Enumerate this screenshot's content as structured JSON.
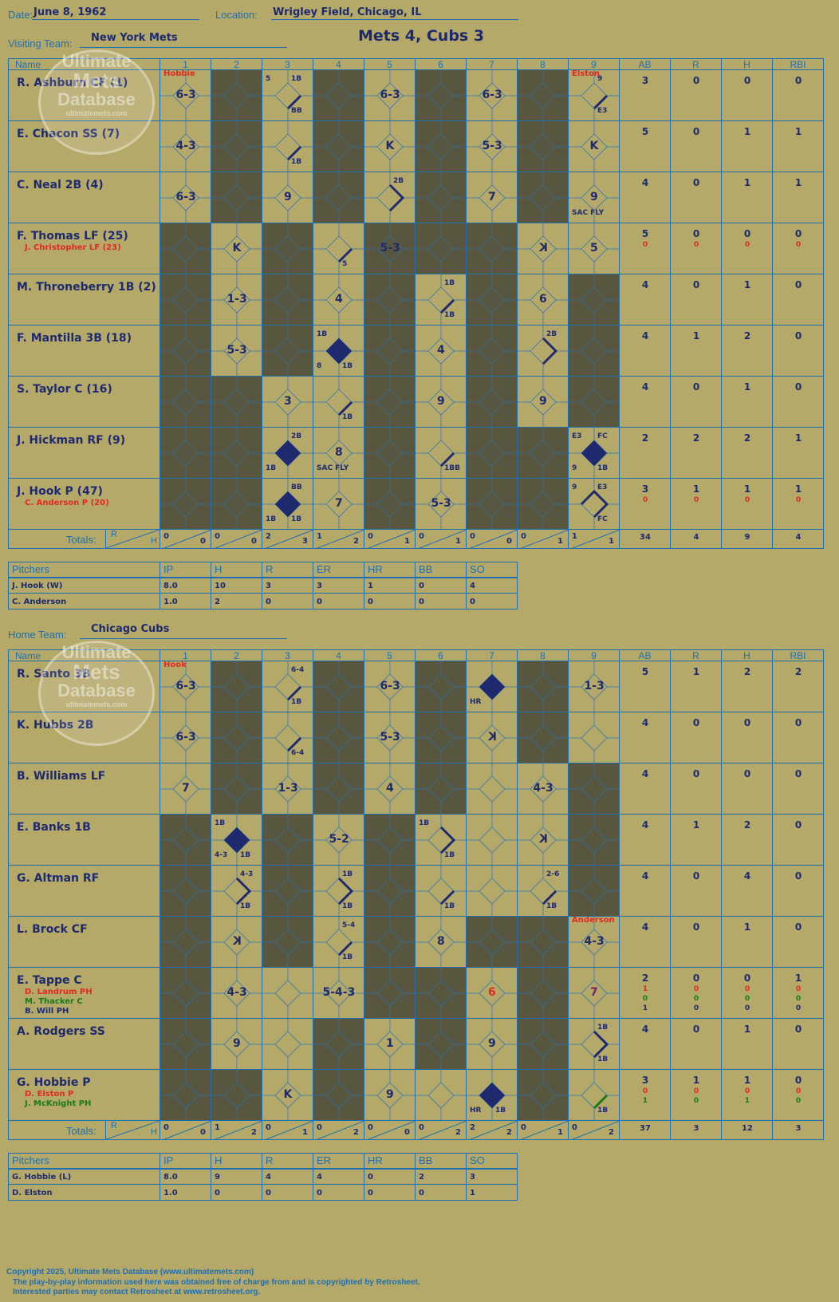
{
  "header": {
    "date_label": "Date:",
    "date": "June 8, 1962",
    "location_label": "Location:",
    "location": "Wrigley Field, Chicago, IL",
    "visiting_label": "Visiting Team:",
    "visiting_team": "New York Mets",
    "home_label": "Home Team:",
    "home_team": "Chicago Cubs",
    "score_title": "Mets 4, Cubs 3"
  },
  "watermark": {
    "line1": "Ultimate",
    "line2": "Mets",
    "line3": "Database",
    "url": "ultimatemets.com"
  },
  "columns": {
    "name": "Name",
    "innings": [
      "1",
      "2",
      "3",
      "4",
      "5",
      "6",
      "7",
      "8",
      "9"
    ],
    "stats": [
      "AB",
      "R",
      "H",
      "RBI"
    ]
  },
  "totals_label": "Totals:",
  "rh_labels": {
    "r": "R",
    "h": "H"
  },
  "visitors": {
    "dark": [
      [
        1,
        3,
        5,
        7
      ],
      [
        1,
        3,
        5,
        7
      ],
      [
        1,
        3,
        5,
        7
      ],
      [
        0,
        2,
        4,
        5,
        6
      ],
      [
        0,
        2,
        4,
        6,
        8
      ],
      [
        0,
        2,
        4,
        6,
        8
      ],
      [
        0,
        1,
        4,
        6,
        8
      ],
      [
        0,
        1,
        4,
        6,
        7
      ],
      [
        0,
        1,
        4,
        6,
        7
      ]
    ],
    "rows": [
      {
        "name": "R. Ashburn CF (1)",
        "subs": [],
        "ab": [
          "3"
        ],
        "r": [
          "0"
        ],
        "h": [
          "0"
        ],
        "rbi": [
          "0"
        ],
        "plays": [
          {
            "i": 0,
            "t": "6-3",
            "note": "Hobbie",
            "noteColor": "red"
          },
          {
            "i": 2,
            "t": "",
            "path": "1B",
            "marks": {
              "tl": "5",
              "tr": "1B",
              "br": "BB"
            }
          },
          {
            "i": 4,
            "t": "6-3"
          },
          {
            "i": 6,
            "t": "6-3"
          },
          {
            "i": 8,
            "t": "",
            "path": "1B",
            "marks": {
              "tr": "9",
              "br": "E3"
            },
            "note": "Elston",
            "noteColor": "red"
          }
        ]
      },
      {
        "name": "E. Chacon SS (7)",
        "subs": [],
        "ab": [
          "5"
        ],
        "r": [
          "0"
        ],
        "h": [
          "1"
        ],
        "rbi": [
          "1"
        ],
        "plays": [
          {
            "i": 0,
            "t": "4-3"
          },
          {
            "i": 2,
            "t": "",
            "path": "1B",
            "marks": {
              "br": "1B"
            }
          },
          {
            "i": 4,
            "t": "K"
          },
          {
            "i": 6,
            "t": "5-3"
          },
          {
            "i": 8,
            "t": "K"
          }
        ]
      },
      {
        "name": "C. Neal 2B (4)",
        "subs": [],
        "ab": [
          "4"
        ],
        "r": [
          "0"
        ],
        "h": [
          "1"
        ],
        "rbi": [
          "1"
        ],
        "plays": [
          {
            "i": 0,
            "t": "6-3"
          },
          {
            "i": 2,
            "t": "9"
          },
          {
            "i": 4,
            "t": "",
            "path": "2B",
            "marks": {
              "tr": "2B"
            }
          },
          {
            "i": 6,
            "t": "7"
          },
          {
            "i": 8,
            "t": "9",
            "marks": {
              "bl": "SAC FLY"
            }
          }
        ]
      },
      {
        "name": "F. Thomas LF (25)",
        "subs": [
          {
            "name": "J. Christopher LF (23)",
            "color": "red"
          }
        ],
        "ab": [
          "5",
          "0"
        ],
        "r": [
          "0",
          "0"
        ],
        "h": [
          "0",
          "0"
        ],
        "rbi": [
          "0",
          "0"
        ],
        "plays": [
          {
            "i": 1,
            "t": "K"
          },
          {
            "i": 3,
            "t": "",
            "path": "1B",
            "marks": {
              "br": "5"
            }
          },
          {
            "i": 3,
            "t": "5-3",
            "col": 4
          },
          {
            "i": 7,
            "t": "K",
            "rev": true
          },
          {
            "i": 8,
            "t": "5"
          }
        ]
      },
      {
        "name": "M. Throneberry 1B (2)",
        "subs": [],
        "ab": [
          "4"
        ],
        "r": [
          "0"
        ],
        "h": [
          "1"
        ],
        "rbi": [
          "0"
        ],
        "plays": [
          {
            "i": 1,
            "t": "1-3"
          },
          {
            "i": 3,
            "t": "4"
          },
          {
            "i": 5,
            "t": "",
            "path": "1B",
            "marks": {
              "tr": "1B",
              "br": "1B"
            }
          },
          {
            "i": 7,
            "t": "6"
          }
        ]
      },
      {
        "name": "F. Mantilla 3B (18)",
        "subs": [],
        "ab": [
          "4"
        ],
        "r": [
          "1"
        ],
        "h": [
          "2"
        ],
        "rbi": [
          "0"
        ],
        "plays": [
          {
            "i": 1,
            "t": "5-3"
          },
          {
            "i": 3,
            "t": "",
            "path": "run",
            "marks": {
              "tl": "1B",
              "bl": "8",
              "br": "1B"
            }
          },
          {
            "i": 5,
            "t": "4"
          },
          {
            "i": 7,
            "t": "",
            "path": "2B",
            "marks": {
              "tr": "2B"
            }
          }
        ]
      },
      {
        "name": "S. Taylor C (16)",
        "subs": [],
        "ab": [
          "4"
        ],
        "r": [
          "0"
        ],
        "h": [
          "1"
        ],
        "rbi": [
          "0"
        ],
        "plays": [
          {
            "i": 2,
            "t": "3"
          },
          {
            "i": 3,
            "t": "",
            "path": "1B",
            "marks": {
              "br": "1B"
            }
          },
          {
            "i": 5,
            "t": "9"
          },
          {
            "i": 7,
            "t": "9"
          }
        ]
      },
      {
        "name": "J. Hickman RF (9)",
        "subs": [],
        "ab": [
          "2"
        ],
        "r": [
          "2"
        ],
        "h": [
          "2"
        ],
        "rbi": [
          "1"
        ],
        "plays": [
          {
            "i": 2,
            "t": "",
            "path": "run",
            "marks": {
              "tr": "2B",
              "bl": "1B"
            }
          },
          {
            "i": 3,
            "t": "8",
            "marks": {
              "bl": "SAC FLY"
            }
          },
          {
            "i": 5,
            "t": "",
            "path": "1B",
            "marks": {
              "br": "1BB"
            }
          },
          {
            "i": 8,
            "t": "",
            "path": "run",
            "marks": {
              "tl": "E3",
              "tr": "FC",
              "bl": "9",
              "br": "1B"
            }
          }
        ]
      },
      {
        "name": "J. Hook P (47)",
        "subs": [
          {
            "name": "C. Anderson P (20)",
            "color": "red"
          }
        ],
        "ab": [
          "3",
          "0"
        ],
        "r": [
          "1",
          "0"
        ],
        "h": [
          "1",
          "0"
        ],
        "rbi": [
          "1",
          "0"
        ],
        "plays": [
          {
            "i": 2,
            "t": "",
            "path": "run",
            "marks": {
              "tr": "BB",
              "bl": "1B",
              "br": "1B"
            }
          },
          {
            "i": 3,
            "t": "7"
          },
          {
            "i": 5,
            "t": "5-3"
          },
          {
            "i": 8,
            "t": "",
            "path": "3B",
            "marks": {
              "tl": "9",
              "tr": "E3",
              "br": "FC"
            }
          }
        ]
      }
    ],
    "inning_totals": [
      [
        "0",
        "0"
      ],
      [
        "0",
        "0"
      ],
      [
        "2",
        "3"
      ],
      [
        "1",
        "2"
      ],
      [
        "0",
        "1"
      ],
      [
        "0",
        "1"
      ],
      [
        "0",
        "0"
      ],
      [
        "0",
        "1"
      ],
      [
        "1",
        "1"
      ]
    ],
    "totals": {
      "ab": "34",
      "r": "4",
      "h": "9",
      "rbi": "4"
    },
    "pitchers_header": [
      "Pitchers",
      "IP",
      "H",
      "R",
      "ER",
      "HR",
      "BB",
      "SO"
    ],
    "pitchers": [
      [
        "J. Hook (W)",
        "8.0",
        "10",
        "3",
        "3",
        "1",
        "0",
        "4"
      ],
      [
        "C. Anderson",
        "1.0",
        "2",
        "0",
        "0",
        "0",
        "0",
        "0"
      ]
    ]
  },
  "home": {
    "dark": [
      [
        1,
        3,
        5,
        7
      ],
      [
        1,
        3,
        5,
        7
      ],
      [
        1,
        3,
        5,
        8
      ],
      [
        0,
        2,
        4,
        8
      ],
      [
        0,
        2,
        4,
        8
      ],
      [
        0,
        2,
        4,
        6,
        7
      ],
      [
        0,
        4,
        5,
        7
      ],
      [
        0,
        3,
        5,
        7
      ],
      [
        0,
        1,
        3,
        7
      ]
    ],
    "rows": [
      {
        "name": "R. Santo 3B",
        "subs": [],
        "ab": [
          "5"
        ],
        "r": [
          "1"
        ],
        "h": [
          "2"
        ],
        "rbi": [
          "2"
        ],
        "plays": [
          {
            "i": 0,
            "t": "6-3",
            "note": "Hook",
            "noteColor": "red"
          },
          {
            "i": 2,
            "t": "",
            "path": "1B",
            "marks": {
              "tr": "6-4",
              "br": "1B"
            }
          },
          {
            "i": 4,
            "t": "6-3"
          },
          {
            "i": 6,
            "t": "",
            "path": "run",
            "marks": {
              "bl": "HR"
            }
          },
          {
            "i": 8,
            "t": "1-3"
          }
        ]
      },
      {
        "name": "K. Hubbs 2B",
        "subs": [],
        "ab": [
          "4"
        ],
        "r": [
          "0"
        ],
        "h": [
          "0"
        ],
        "rbi": [
          "0"
        ],
        "plays": [
          {
            "i": 0,
            "t": "6-3"
          },
          {
            "i": 2,
            "t": "",
            "path": "1B",
            "marks": {
              "br": "6-4"
            }
          },
          {
            "i": 4,
            "t": "5-3"
          },
          {
            "i": 6,
            "t": "K",
            "rev": true
          }
        ]
      },
      {
        "name": "B. Williams LF",
        "subs": [],
        "ab": [
          "4"
        ],
        "r": [
          "0"
        ],
        "h": [
          "0"
        ],
        "rbi": [
          "0"
        ],
        "plays": [
          {
            "i": 0,
            "t": "7"
          },
          {
            "i": 2,
            "t": "1-3"
          },
          {
            "i": 4,
            "t": "4"
          },
          {
            "i": 7,
            "t": "4-3"
          }
        ]
      },
      {
        "name": "E. Banks 1B",
        "subs": [],
        "ab": [
          "4"
        ],
        "r": [
          "1"
        ],
        "h": [
          "2"
        ],
        "rbi": [
          "0"
        ],
        "plays": [
          {
            "i": 1,
            "t": "",
            "path": "run",
            "marks": {
              "tl": "1B",
              "bl": "4-3",
              "br": "1B"
            }
          },
          {
            "i": 3,
            "t": "5-2"
          },
          {
            "i": 5,
            "t": "",
            "path": "2B",
            "marks": {
              "tl": "1B",
              "br": "1B"
            }
          },
          {
            "i": 7,
            "t": "K",
            "rev": true
          }
        ]
      },
      {
        "name": "G. Altman RF",
        "subs": [],
        "ab": [
          "4"
        ],
        "r": [
          "0"
        ],
        "h": [
          "4"
        ],
        "rbi": [
          "0"
        ],
        "plays": [
          {
            "i": 1,
            "t": "",
            "path": "2B",
            "marks": {
              "tr": "4-3",
              "br": "1B"
            }
          },
          {
            "i": 3,
            "t": "",
            "path": "2B",
            "marks": {
              "tr": "1B",
              "br": "1B"
            }
          },
          {
            "i": 5,
            "t": "",
            "path": "1B",
            "marks": {
              "br": "1B"
            }
          },
          {
            "i": 7,
            "t": "",
            "path": "1B",
            "marks": {
              "tr": "2-6",
              "br": "1B"
            }
          }
        ]
      },
      {
        "name": "L. Brock CF",
        "subs": [],
        "ab": [
          "4"
        ],
        "r": [
          "0"
        ],
        "h": [
          "1"
        ],
        "rbi": [
          "0"
        ],
        "plays": [
          {
            "i": 1,
            "t": "K",
            "rev": true
          },
          {
            "i": 3,
            "t": "",
            "path": "1B",
            "marks": {
              "tr": "5-4",
              "br": "1B"
            }
          },
          {
            "i": 5,
            "t": "8"
          },
          {
            "i": 8,
            "t": "4-3",
            "note": "Anderson",
            "noteColor": "red"
          }
        ]
      },
      {
        "name": "E. Tappe C",
        "subs": [
          {
            "name": "D. Landrum PH",
            "color": "red"
          },
          {
            "name": "M. Thacker C",
            "color": "green"
          },
          {
            "name": "B. Will PH",
            "color": "navy"
          }
        ],
        "ab": [
          "2",
          "1",
          "0",
          "1"
        ],
        "r": [
          "0",
          "0",
          "0",
          "0"
        ],
        "h": [
          "0",
          "0",
          "0",
          "0"
        ],
        "rbi": [
          "1",
          "0",
          "0",
          "0"
        ],
        "plays": [
          {
            "i": 1,
            "t": "4-3"
          },
          {
            "i": 3,
            "t": "5-4-3"
          },
          {
            "i": 6,
            "t": "6",
            "color": "red"
          },
          {
            "i": 8,
            "t": "7",
            "color": "purple"
          }
        ]
      },
      {
        "name": "A. Rodgers SS",
        "subs": [],
        "ab": [
          "4"
        ],
        "r": [
          "0"
        ],
        "h": [
          "1"
        ],
        "rbi": [
          "0"
        ],
        "plays": [
          {
            "i": 1,
            "t": "9"
          },
          {
            "i": 4,
            "t": "1"
          },
          {
            "i": 6,
            "t": "9"
          },
          {
            "i": 8,
            "t": "",
            "path": "2B",
            "marks": {
              "tr": "1B",
              "br": "1B"
            }
          }
        ]
      },
      {
        "name": "G. Hobbie P",
        "subs": [
          {
            "name": "D. Elston P",
            "color": "red"
          },
          {
            "name": "J. McKnight PH",
            "color": "green"
          }
        ],
        "ab": [
          "3",
          "0",
          "1"
        ],
        "r": [
          "1",
          "0",
          "0"
        ],
        "h": [
          "1",
          "0",
          "1"
        ],
        "rbi": [
          "0",
          "0",
          "0"
        ],
        "plays": [
          {
            "i": 2,
            "t": "K"
          },
          {
            "i": 4,
            "t": "9"
          },
          {
            "i": 6,
            "t": "",
            "path": "run",
            "marks": {
              "bl": "HR",
              "br": "1B"
            }
          },
          {
            "i": 8,
            "t": "",
            "path": "1Bg",
            "marks": {
              "br": "1B"
            }
          }
        ]
      }
    ],
    "inning_totals": [
      [
        "0",
        "0"
      ],
      [
        "1",
        "2"
      ],
      [
        "0",
        "1"
      ],
      [
        "0",
        "2"
      ],
      [
        "0",
        "0"
      ],
      [
        "0",
        "2"
      ],
      [
        "2",
        "2"
      ],
      [
        "0",
        "1"
      ],
      [
        "0",
        "2"
      ]
    ],
    "totals": {
      "ab": "37",
      "r": "3",
      "h": "12",
      "rbi": "3"
    },
    "pitchers_header": [
      "Pitchers",
      "IP",
      "H",
      "R",
      "ER",
      "HR",
      "BB",
      "SO"
    ],
    "pitchers": [
      [
        "G. Hobbie (L)",
        "8.0",
        "9",
        "4",
        "4",
        "0",
        "2",
        "3"
      ],
      [
        "D. Elston",
        "1.0",
        "0",
        "0",
        "0",
        "0",
        "0",
        "1"
      ]
    ]
  },
  "footer": {
    "line1": "Copyright 2025, Ultimate Mets Database (www.ultimatemets.com)",
    "line2": "The play-by-play information used here was obtained free of charge from and is copyrighted by Retrosheet.",
    "line3": "Interested parties may contact Retrosheet at www.retrosheet.org."
  }
}
